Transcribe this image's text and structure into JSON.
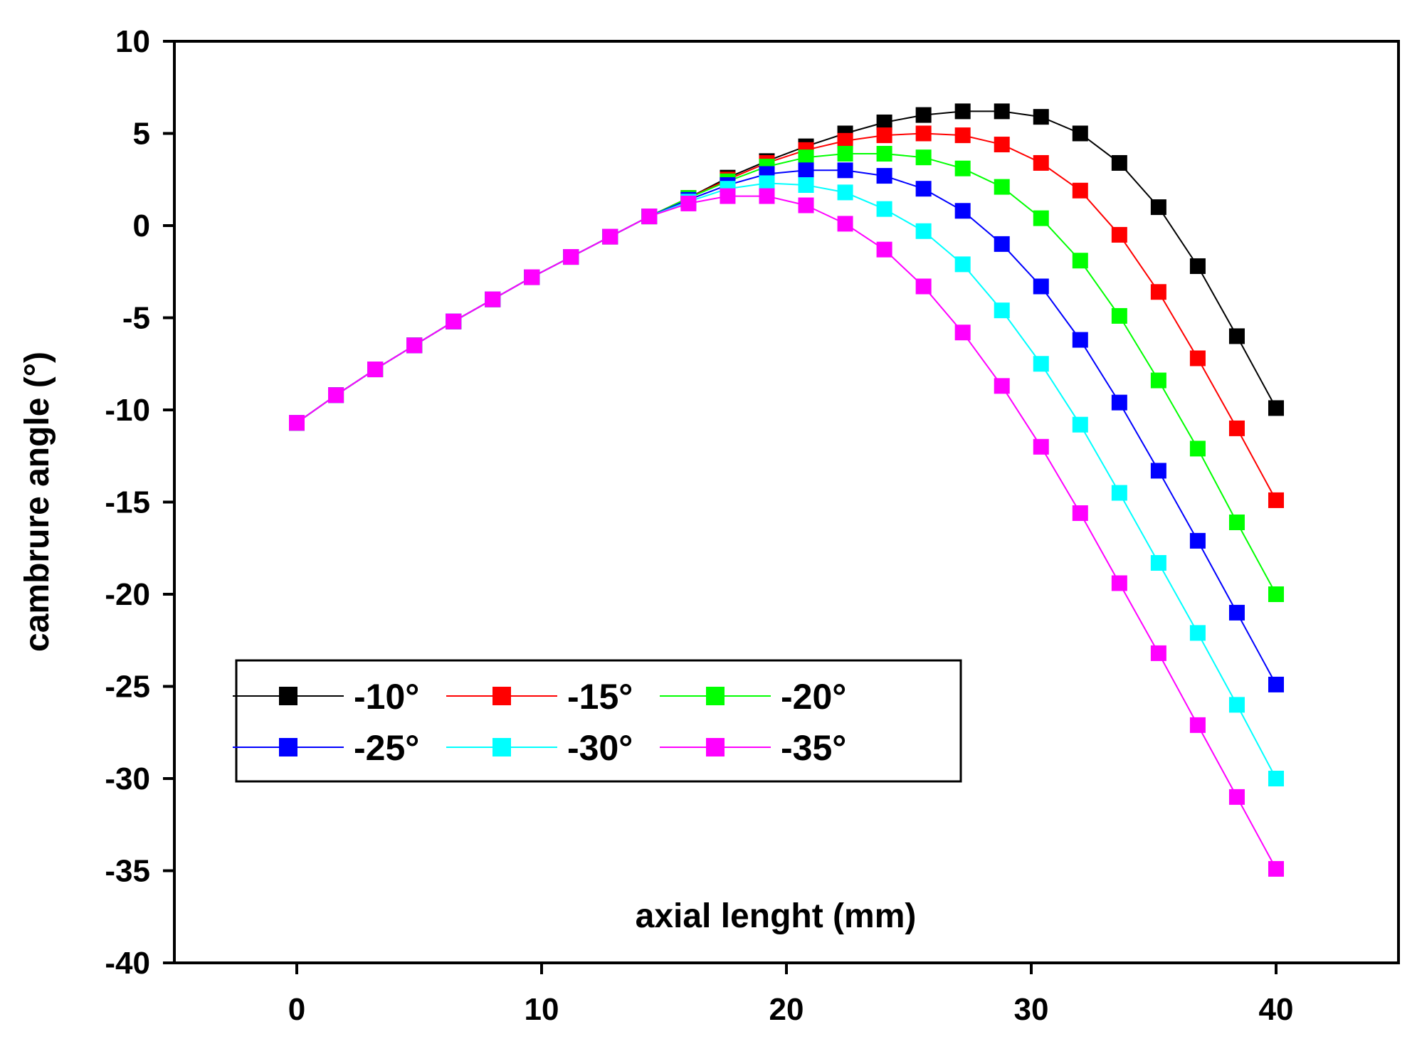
{
  "chart_data": {
    "type": "line",
    "title": "",
    "xlabel": "axial lenght (mm)",
    "ylabel": "cambrure angle (°)",
    "xlim": [
      -5,
      45
    ],
    "ylim": [
      -40,
      10
    ],
    "xticks": [
      0,
      10,
      20,
      30,
      40
    ],
    "yticks": [
      10,
      5,
      0,
      -5,
      -10,
      -15,
      -20,
      -25,
      -30,
      -35,
      -40
    ],
    "xtick_labels": [
      "0",
      "10",
      "20",
      "30",
      "40"
    ],
    "ytick_labels": [
      "10",
      "5",
      "0",
      "-5",
      "-10",
      "-15",
      "-20",
      "-25",
      "-30",
      "-35",
      "-40"
    ],
    "grid": false,
    "legend_position": "lower-left",
    "x": [
      0,
      1.6,
      3.2,
      4.8,
      6.4,
      8.0,
      9.6,
      11.2,
      12.8,
      14.4,
      16.0,
      17.6,
      19.2,
      20.8,
      22.4,
      24.0,
      25.6,
      27.2,
      28.8,
      30.4,
      32.0,
      33.6,
      35.2,
      36.8,
      38.4,
      40.0
    ],
    "series": [
      {
        "name": "-10°",
        "color": "#000000",
        "values": [
          -10.7,
          -9.2,
          -7.8,
          -6.5,
          -5.2,
          -4.0,
          -2.8,
          -1.7,
          -0.6,
          0.5,
          1.5,
          2.6,
          3.5,
          4.3,
          5.0,
          5.6,
          6.0,
          6.2,
          6.2,
          5.9,
          5.0,
          3.4,
          1.0,
          -2.2,
          -6.0,
          -9.9
        ]
      },
      {
        "name": "-15°",
        "color": "#ff0000",
        "values": [
          -10.7,
          -9.2,
          -7.8,
          -6.5,
          -5.2,
          -4.0,
          -2.8,
          -1.7,
          -0.6,
          0.5,
          1.5,
          2.5,
          3.4,
          4.1,
          4.6,
          4.9,
          5.0,
          4.9,
          4.4,
          3.4,
          1.9,
          -0.5,
          -3.6,
          -7.2,
          -11.0,
          -14.9
        ]
      },
      {
        "name": "-20°",
        "color": "#00ff00",
        "values": [
          -10.7,
          -9.2,
          -7.8,
          -6.5,
          -5.2,
          -4.0,
          -2.8,
          -1.7,
          -0.6,
          0.5,
          1.5,
          2.4,
          3.2,
          3.7,
          3.9,
          3.9,
          3.7,
          3.1,
          2.1,
          0.4,
          -1.9,
          -4.9,
          -8.4,
          -12.1,
          -16.1,
          -20.0
        ]
      },
      {
        "name": "-25°",
        "color": "#0000ff",
        "values": [
          -10.7,
          -9.2,
          -7.8,
          -6.5,
          -5.2,
          -4.0,
          -2.8,
          -1.7,
          -0.6,
          0.5,
          1.4,
          2.2,
          2.8,
          3.0,
          3.0,
          2.7,
          2.0,
          0.8,
          -1.0,
          -3.3,
          -6.2,
          -9.6,
          -13.3,
          -17.1,
          -21.0,
          -24.9
        ]
      },
      {
        "name": "-30°",
        "color": "#00ffff",
        "values": [
          -10.7,
          -9.2,
          -7.8,
          -6.5,
          -5.2,
          -4.0,
          -2.8,
          -1.7,
          -0.6,
          0.5,
          1.3,
          2.0,
          2.3,
          2.2,
          1.8,
          0.9,
          -0.3,
          -2.1,
          -4.6,
          -7.5,
          -10.8,
          -14.5,
          -18.3,
          -22.1,
          -26.0,
          -30.0
        ]
      },
      {
        "name": "-35°",
        "color": "#ff00ff",
        "values": [
          -10.7,
          -9.2,
          -7.8,
          -6.5,
          -5.2,
          -4.0,
          -2.8,
          -1.7,
          -0.6,
          0.5,
          1.2,
          1.6,
          1.6,
          1.1,
          0.1,
          -1.3,
          -3.3,
          -5.8,
          -8.7,
          -12.0,
          -15.6,
          -19.4,
          -23.2,
          -27.1,
          -31.0,
          -34.9
        ]
      }
    ]
  }
}
